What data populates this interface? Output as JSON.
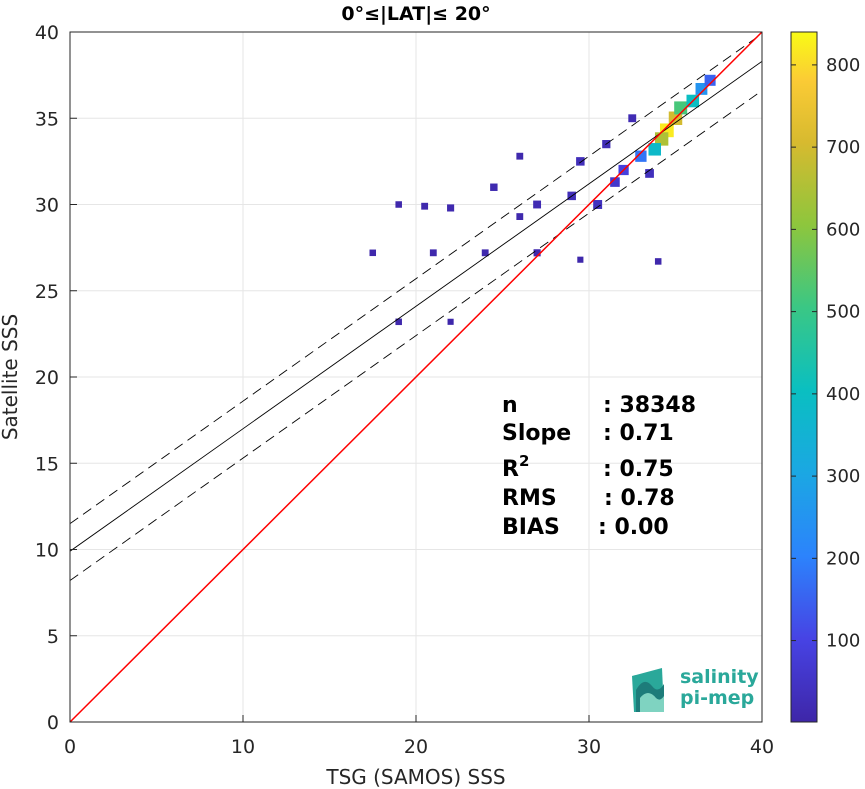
{
  "chart_data": {
    "type": "heatmap",
    "title": "0°≤|LAT|≤ 20°",
    "xlabel": "TSG (SAMOS) SSS",
    "ylabel": "Satellite SSS",
    "xlim": [
      0,
      40
    ],
    "ylim": [
      0,
      40
    ],
    "xticks": [
      "0",
      "10",
      "20",
      "30",
      "40"
    ],
    "yticks": [
      "0",
      "5",
      "10",
      "15",
      "20",
      "25",
      "30",
      "35",
      "40"
    ],
    "grid": true,
    "colorbar": {
      "range": [
        1,
        840
      ],
      "ticks": [
        "100",
        "200",
        "300",
        "400",
        "500",
        "600",
        "700",
        "800"
      ],
      "colormap": "parula"
    },
    "lines": {
      "one_to_one": {
        "color": "#ff0000",
        "x": [
          0,
          40
        ],
        "y": [
          0,
          40
        ]
      },
      "fit": {
        "color": "#000000",
        "x": [
          0,
          40
        ],
        "y": [
          9.9,
          38.3
        ]
      },
      "upper_bound": {
        "color": "#000000",
        "style": "dashed",
        "x": [
          0,
          40
        ],
        "y": [
          11.5,
          39.9
        ]
      },
      "lower_bound": {
        "color": "#000000",
        "style": "dashed",
        "x": [
          0,
          40
        ],
        "y": [
          8.2,
          36.6
        ]
      }
    },
    "density": [
      {
        "x": 34.5,
        "y": 34.3,
        "count": 820
      },
      {
        "x": 35.0,
        "y": 35.0,
        "count": 700
      },
      {
        "x": 34.2,
        "y": 33.8,
        "count": 650
      },
      {
        "x": 35.3,
        "y": 35.6,
        "count": 520
      },
      {
        "x": 36.0,
        "y": 36.0,
        "count": 400
      },
      {
        "x": 33.8,
        "y": 33.2,
        "count": 380
      },
      {
        "x": 36.5,
        "y": 36.7,
        "count": 250
      },
      {
        "x": 33.0,
        "y": 32.8,
        "count": 180
      },
      {
        "x": 37.0,
        "y": 37.2,
        "count": 150
      },
      {
        "x": 32.0,
        "y": 32.0,
        "count": 90
      },
      {
        "x": 31.5,
        "y": 31.3,
        "count": 60
      },
      {
        "x": 30.5,
        "y": 30.0,
        "count": 40
      },
      {
        "x": 29.0,
        "y": 30.5,
        "count": 30
      },
      {
        "x": 27.0,
        "y": 30.0,
        "count": 20
      },
      {
        "x": 24.5,
        "y": 31.0,
        "count": 15
      },
      {
        "x": 22.0,
        "y": 29.8,
        "count": 12
      },
      {
        "x": 20.5,
        "y": 29.9,
        "count": 10
      },
      {
        "x": 19.0,
        "y": 30.0,
        "count": 8
      },
      {
        "x": 26.0,
        "y": 29.3,
        "count": 10
      },
      {
        "x": 17.5,
        "y": 27.2,
        "count": 8
      },
      {
        "x": 21.0,
        "y": 27.2,
        "count": 10
      },
      {
        "x": 24.0,
        "y": 27.2,
        "count": 10
      },
      {
        "x": 27.0,
        "y": 27.2,
        "count": 12
      },
      {
        "x": 29.5,
        "y": 26.8,
        "count": 6
      },
      {
        "x": 34.0,
        "y": 26.7,
        "count": 8
      },
      {
        "x": 19.0,
        "y": 23.2,
        "count": 8
      },
      {
        "x": 22.0,
        "y": 23.2,
        "count": 6
      },
      {
        "x": 31.0,
        "y": 33.5,
        "count": 25
      },
      {
        "x": 29.5,
        "y": 32.5,
        "count": 30
      },
      {
        "x": 32.5,
        "y": 35.0,
        "count": 20
      },
      {
        "x": 33.5,
        "y": 31.8,
        "count": 35
      },
      {
        "x": 26.0,
        "y": 32.8,
        "count": 10
      }
    ]
  },
  "stats": {
    "n_label": "n",
    "n_value": ": 38348",
    "slope_label": "Slope",
    "slope_value": ": 0.71",
    "r2_label": "R",
    "r2_sup": "2",
    "r2_value": ": 0.75",
    "rms_label": "RMS",
    "rms_value": ": 0.78",
    "bias_label": "BIAS",
    "bias_value": ": 0.00"
  },
  "logo": {
    "line1": "salinity",
    "line2": "pi-mep"
  }
}
